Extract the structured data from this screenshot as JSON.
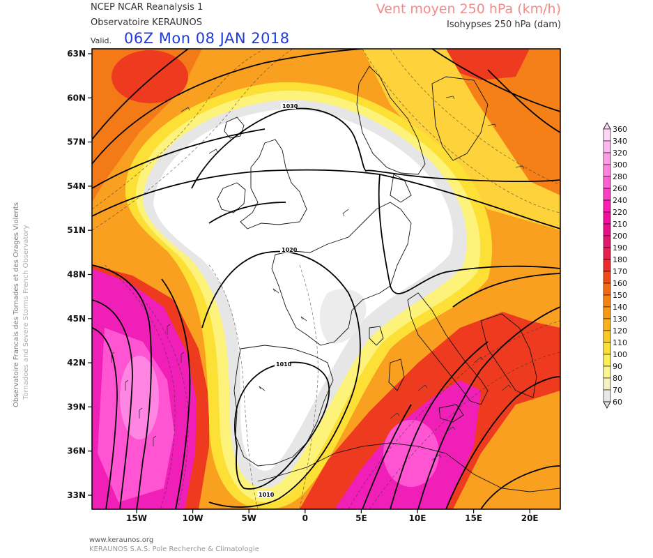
{
  "header": {
    "source_line": "NCEP NCAR Reanalysis 1",
    "observatory_line": "Observatoire KERAUNOS",
    "valid_label": "Valid.",
    "valid_time": "06Z Mon 08 JAN 2018",
    "title": "Vent moyen 250 hPa (km/h)",
    "subtitle": "Isohypses 250 hPa (dam)"
  },
  "side_text": {
    "line1": "Observatoire Francais des Tornades et des Orages Violents",
    "line2": "Tornadoes and Severe Storms French Observatory"
  },
  "footer": {
    "url": "www.keraunos.org",
    "company": "KERAUNOS S.A.S. Pole Recherche & Climatologie"
  },
  "axes": {
    "lat_labels": [
      "63N",
      "60N",
      "57N",
      "54N",
      "51N",
      "48N",
      "45N",
      "42N",
      "39N",
      "36N",
      "33N"
    ],
    "lon_labels": [
      "15W",
      "10W",
      "5W",
      "0",
      "5E",
      "10E",
      "15E",
      "20E"
    ]
  },
  "contour_labels": [
    "1030",
    "1020",
    "1010",
    "1010"
  ],
  "colorbar": {
    "levels": [
      "360",
      "340",
      "320",
      "300",
      "280",
      "260",
      "240",
      "220",
      "210",
      "200",
      "190",
      "180",
      "170",
      "160",
      "150",
      "140",
      "130",
      "120",
      "110",
      "100",
      "90",
      "80",
      "70",
      "60"
    ],
    "colors": [
      "#ffd6f5",
      "#ffb8ee",
      "#ff9ce6",
      "#ff80de",
      "#ff5fd2",
      "#ff3cc4",
      "#ff1fb4",
      "#f50fa0",
      "#e8108a",
      "#e01870",
      "#e81f50",
      "#ee2a2a",
      "#f14a1a",
      "#f56a10",
      "#f7840f",
      "#f99a10",
      "#fbb21a",
      "#fcc828",
      "#fde036",
      "#fdee55",
      "#fdf590",
      "#f6f3c2",
      "#e8e8e8",
      "#dcdcdc"
    ]
  },
  "palette": {
    "calm": "#ffffff",
    "light_grey": "#e6e6e6",
    "yellow": "#fdf27a",
    "orange": "#f9a020",
    "red": "#ee3a1e",
    "magenta": "#f01fb8",
    "pink": "#ff70dc"
  }
}
